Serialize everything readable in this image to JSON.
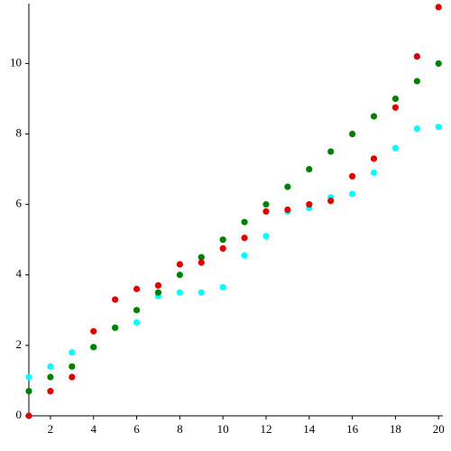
{
  "chart_data": {
    "type": "scatter",
    "x": [
      1,
      2,
      3,
      4,
      5,
      6,
      7,
      8,
      9,
      10,
      11,
      12,
      13,
      14,
      15,
      16,
      17,
      18,
      19,
      20
    ],
    "series": [
      {
        "color": "#00ffff",
        "values": [
          1.1,
          1.4,
          1.8,
          1.95,
          2.5,
          2.65,
          3.4,
          3.5,
          3.5,
          3.65,
          4.55,
          5.1,
          5.8,
          5.9,
          6.2,
          6.3,
          6.9,
          7.6,
          8.15,
          8.2
        ]
      },
      {
        "color": "#008000",
        "values": [
          0.7,
          1.1,
          1.4,
          1.95,
          2.5,
          3.0,
          3.5,
          4.0,
          4.5,
          5.0,
          5.5,
          6.0,
          6.5,
          7.0,
          7.5,
          8.0,
          8.5,
          9.0,
          9.5,
          10.0
        ]
      },
      {
        "color": "#e00000",
        "values": [
          0,
          0.7,
          1.1,
          2.4,
          3.3,
          3.6,
          3.7,
          4.3,
          4.35,
          4.75,
          5.05,
          5.8,
          5.85,
          6.0,
          6.1,
          6.8,
          7.3,
          8.75,
          10.2,
          11.6
        ]
      }
    ],
    "xlim": [
      1,
      20.2
    ],
    "ylim": [
      0,
      11.7
    ],
    "xticks": [
      2,
      4,
      6,
      8,
      10,
      12,
      14,
      16,
      18,
      20
    ],
    "yticks": [
      0,
      2,
      4,
      6,
      8,
      10
    ]
  }
}
